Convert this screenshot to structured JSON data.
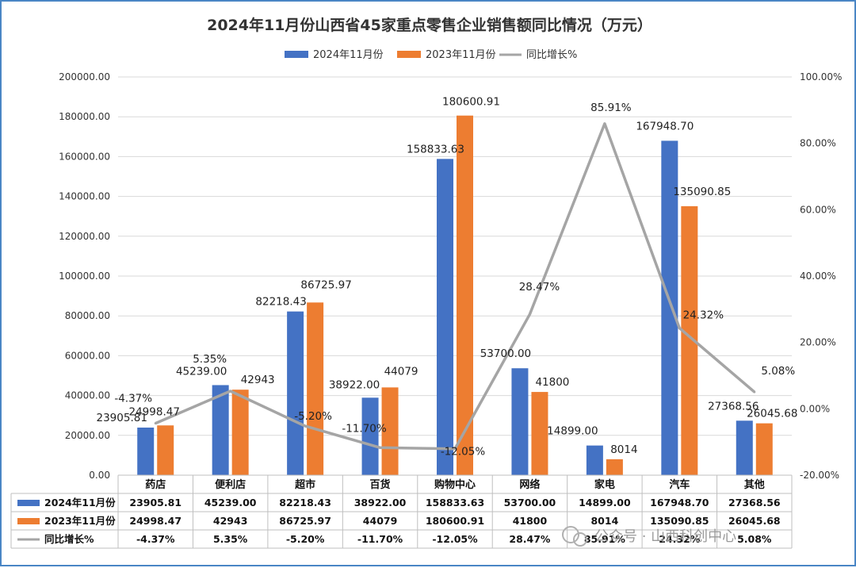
{
  "chart_data": {
    "type": "bar",
    "title": "2024年11月份山西省45家重点零售企业销售额同比情况（万元）",
    "categories": [
      "药店",
      "便利店",
      "超市",
      "百货",
      "购物中心",
      "网络",
      "家电",
      "汽车",
      "其他"
    ],
    "series": [
      {
        "name": "2024年11月份",
        "type": "bar",
        "axis": "left",
        "color": "#4472c4",
        "values": [
          23905.81,
          45239.0,
          82218.43,
          38922.0,
          158833.63,
          53700.0,
          14899.0,
          167948.7,
          27368.56
        ],
        "labels": [
          "23905.81",
          "45239.00",
          "82218.43",
          "38922.00",
          "158833.63",
          "53700.00",
          "14899.00",
          "167948.70",
          "27368.56"
        ]
      },
      {
        "name": "2023年11月份",
        "type": "bar",
        "axis": "left",
        "color": "#ed7d31",
        "values": [
          24998.47,
          42943,
          86725.97,
          44079,
          180600.91,
          41800,
          8014,
          135090.85,
          26045.68
        ],
        "labels": [
          "24998.47",
          "42943",
          "86725.97",
          "44079",
          "180600.91",
          "41800",
          "8014",
          "135090.85",
          "26045.68"
        ]
      },
      {
        "name": "同比增长%",
        "type": "line",
        "axis": "right",
        "color": "#a5a5a5",
        "values": [
          -4.37,
          5.35,
          -5.2,
          -11.7,
          -12.05,
          28.47,
          85.91,
          24.32,
          5.08
        ],
        "labels": [
          "-4.37%",
          "5.35%",
          "-5.20%",
          "-11.70%",
          "-12.05%",
          "28.47%",
          "85.91%",
          "24.32%",
          "5.08%"
        ]
      }
    ],
    "y_left": {
      "min": 0,
      "max": 200000,
      "step": 20000,
      "tick_labels": [
        "0.00",
        "20000.00",
        "40000.00",
        "60000.00",
        "80000.00",
        "100000.00",
        "120000.00",
        "140000.00",
        "160000.00",
        "180000.00",
        "200000.00"
      ]
    },
    "y_right": {
      "min": -20,
      "max": 100,
      "step": 20,
      "tick_labels": [
        "-20.00%",
        "0.00%",
        "20.00%",
        "40.00%",
        "60.00%",
        "80.00%",
        "100.00%"
      ]
    },
    "legend_position": "top",
    "grid": true,
    "data_table": true
  },
  "watermark": "公众号 · 山西科创中心"
}
